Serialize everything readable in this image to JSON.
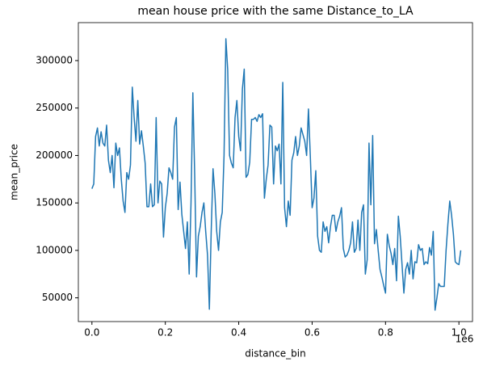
{
  "chart_data": {
    "type": "line",
    "title": "mean house price with the same Distance_to_LA",
    "x_label": "distance_bin",
    "y_label": "mean_price",
    "x_offset_label": "1e6",
    "xlim": [
      -0.037,
      1.037
    ],
    "ylim": [
      25000,
      340000
    ],
    "xticks": [
      {
        "value": 0,
        "label": "0.0"
      },
      0.2,
      0.4,
      0.6,
      0.8,
      {
        "value": 1,
        "label": "1.0"
      }
    ],
    "yticks": [
      50000,
      100000,
      150000,
      200000,
      250000,
      300000
    ],
    "grid": false,
    "x": [
      0,
      0.005,
      0.01,
      0.015,
      0.02,
      0.025,
      0.03,
      0.035,
      0.04,
      0.045,
      0.05,
      0.055,
      0.06,
      0.065,
      0.07,
      0.075,
      0.08,
      0.085,
      0.09,
      0.095,
      0.1,
      0.105,
      0.11,
      0.115,
      0.12,
      0.125,
      0.13,
      0.135,
      0.14,
      0.145,
      0.15,
      0.155,
      0.16,
      0.165,
      0.17,
      0.175,
      0.18,
      0.185,
      0.19,
      0.195,
      0.2,
      0.205,
      0.21,
      0.215,
      0.22,
      0.225,
      0.23,
      0.235,
      0.24,
      0.245,
      0.25,
      0.255,
      0.26,
      0.265,
      0.27,
      0.275,
      0.28,
      0.285,
      0.29,
      0.295,
      0.3,
      0.305,
      0.31,
      0.315,
      0.32,
      0.325,
      0.33,
      0.335,
      0.34,
      0.345,
      0.35,
      0.355,
      0.36,
      0.365,
      0.37,
      0.375,
      0.38,
      0.385,
      0.39,
      0.395,
      0.4,
      0.405,
      0.41,
      0.415,
      0.42,
      0.425,
      0.43,
      0.435,
      0.44,
      0.445,
      0.45,
      0.455,
      0.46,
      0.465,
      0.47,
      0.475,
      0.48,
      0.485,
      0.49,
      0.495,
      0.5,
      0.505,
      0.51,
      0.515,
      0.52,
      0.525,
      0.53,
      0.535,
      0.54,
      0.545,
      0.55,
      0.555,
      0.56,
      0.565,
      0.57,
      0.575,
      0.58,
      0.585,
      0.59,
      0.595,
      0.6,
      0.605,
      0.61,
      0.615,
      0.62,
      0.625,
      0.63,
      0.635,
      0.64,
      0.645,
      0.65,
      0.655,
      0.66,
      0.665,
      0.67,
      0.675,
      0.68,
      0.685,
      0.69,
      0.695,
      0.7,
      0.705,
      0.71,
      0.715,
      0.72,
      0.725,
      0.73,
      0.735,
      0.74,
      0.745,
      0.75,
      0.755,
      0.76,
      0.765,
      0.77,
      0.775,
      0.78,
      0.785,
      0.79,
      0.795,
      0.8,
      0.805,
      0.81,
      0.815,
      0.82,
      0.825,
      0.83,
      0.835,
      0.84,
      0.845,
      0.85,
      0.855,
      0.86,
      0.865,
      0.87,
      0.875,
      0.88,
      0.885,
      0.89,
      0.895,
      0.9,
      0.905,
      0.91,
      0.915,
      0.92,
      0.925,
      0.93,
      0.935,
      0.94,
      0.945,
      0.95,
      0.955,
      0.96,
      0.965,
      0.97,
      0.975,
      0.98,
      0.985,
      0.99,
      0.995,
      1,
      1.005
    ],
    "series": [
      {
        "color": "#1f77b4",
        "values": [
          165000,
          170000,
          220000,
          229000,
          210000,
          225000,
          213000,
          210000,
          232000,
          195000,
          182000,
          200000,
          166000,
          213000,
          200000,
          208000,
          175000,
          152000,
          140000,
          182000,
          175000,
          190000,
          272000,
          240000,
          215000,
          258000,
          212000,
          226000,
          210000,
          192000,
          146000,
          146000,
          170000,
          146000,
          148000,
          240000,
          150000,
          173000,
          170000,
          114000,
          145000,
          160000,
          187000,
          182000,
          175000,
          230000,
          240000,
          143000,
          172000,
          138000,
          120000,
          102000,
          130000,
          75000,
          150000,
          266000,
          180000,
          72000,
          115000,
          125000,
          140000,
          150000,
          120000,
          95000,
          38000,
          120000,
          186000,
          160000,
          120000,
          100000,
          130000,
          140000,
          200000,
          323000,
          290000,
          200000,
          192000,
          187000,
          240000,
          258000,
          220000,
          205000,
          270000,
          291000,
          177000,
          180000,
          193000,
          238000,
          238000,
          240000,
          236000,
          243000,
          240000,
          244000,
          155000,
          175000,
          190000,
          232000,
          230000,
          170000,
          210000,
          205000,
          212000,
          170000,
          277000,
          145000,
          125000,
          152000,
          137000,
          195000,
          203000,
          220000,
          200000,
          210000,
          229000,
          222000,
          215000,
          200000,
          249000,
          200000,
          145000,
          155000,
          184000,
          115000,
          100000,
          98000,
          130000,
          120000,
          125000,
          108000,
          125000,
          137000,
          137000,
          120000,
          130000,
          136000,
          145000,
          102000,
          93000,
          95000,
          100000,
          108000,
          130000,
          98000,
          102000,
          132000,
          100000,
          140000,
          148000,
          75000,
          90000,
          213000,
          148000,
          221000,
          107000,
          122000,
          100000,
          80000,
          72000,
          63000,
          55000,
          117000,
          105000,
          97000,
          85000,
          102000,
          68000,
          136000,
          115000,
          85000,
          55000,
          80000,
          87000,
          75000,
          100000,
          70000,
          88000,
          87000,
          106000,
          100000,
          102000,
          85000,
          88000,
          86000,
          103000,
          95000,
          120000,
          37000,
          50000,
          65000,
          62000,
          62000,
          62000,
          100000,
          128000,
          152000,
          137000,
          117000,
          88000,
          86000,
          85000,
          100000
        ]
      }
    ]
  }
}
